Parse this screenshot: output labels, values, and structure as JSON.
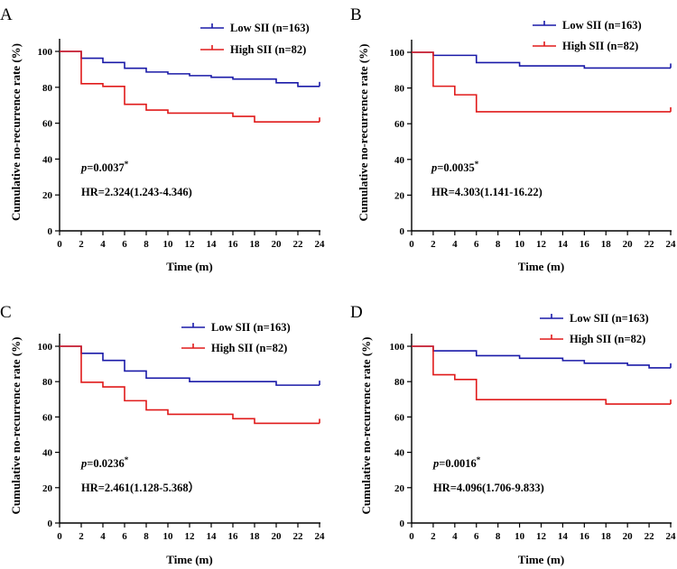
{
  "colors": {
    "low": "#1a1aa8",
    "high": "#e01a1a",
    "axis": "#000000"
  },
  "chart_data": [
    {
      "type": "line",
      "panel_label": "A",
      "xlabel": "Time (m)",
      "ylabel": "Cumulative no-recurrence rate (%)",
      "xlim": [
        0,
        24
      ],
      "ylim": [
        0,
        100
      ],
      "xticks": [
        0,
        2,
        4,
        6,
        8,
        10,
        12,
        14,
        16,
        18,
        20,
        22,
        24
      ],
      "yticks": [
        0,
        20,
        40,
        60,
        80,
        100
      ],
      "series": [
        {
          "name": "Low SII (n=163)",
          "x": [
            0,
            2,
            4,
            6,
            8,
            10,
            12,
            14,
            16,
            20,
            22,
            24
          ],
          "y": [
            100,
            96.2,
            93.8,
            90.6,
            88.5,
            87.5,
            86.5,
            85.6,
            84.6,
            82.5,
            80.5,
            80.5
          ]
        },
        {
          "name": "High SII (n=82)",
          "x": [
            0,
            2,
            4,
            6,
            8,
            10,
            16,
            18,
            24
          ],
          "y": [
            100,
            82,
            80.5,
            70.5,
            67.3,
            65.6,
            63.8,
            60.7,
            60.7
          ]
        }
      ],
      "p_prefix": "p",
      "p_value": "=0.0037",
      "p_star": "*",
      "hr": "HR=2.324(1.243-4.346)"
    },
    {
      "type": "line",
      "panel_label": "B",
      "xlabel": "Time (m)",
      "ylabel": "Cumulative no-recurrence rate (%)",
      "xlim": [
        0,
        24
      ],
      "ylim": [
        0,
        100
      ],
      "xticks": [
        0,
        2,
        4,
        6,
        8,
        10,
        12,
        14,
        16,
        18,
        20,
        22,
        24
      ],
      "yticks": [
        0,
        20,
        40,
        60,
        80,
        100
      ],
      "series": [
        {
          "name": "Low SII (n=163)",
          "x": [
            0,
            2,
            6,
            10,
            16,
            24
          ],
          "y": [
            100,
            98.3,
            94.2,
            92.4,
            91.2,
            91.2
          ]
        },
        {
          "name": "High SII (n=82)",
          "x": [
            0,
            2,
            4,
            6,
            24
          ],
          "y": [
            100,
            81,
            76.2,
            66.7,
            66.7
          ]
        }
      ],
      "p_prefix": "p",
      "p_value": "=0.0035",
      "p_star": "*",
      "hr": "HR=4.303(1.141-16.22)"
    },
    {
      "type": "line",
      "panel_label": "C",
      "xlabel": "Time (m)",
      "ylabel": "Cumulative no-recurrence rate (%)",
      "xlim": [
        0,
        24
      ],
      "ylim": [
        0,
        100
      ],
      "xticks": [
        0,
        2,
        4,
        6,
        8,
        10,
        12,
        14,
        16,
        18,
        20,
        22,
        24
      ],
      "yticks": [
        0,
        20,
        40,
        60,
        80,
        100
      ],
      "series": [
        {
          "name": "Low SII (n=163)",
          "x": [
            0,
            2,
            4,
            6,
            8,
            12,
            20,
            24
          ],
          "y": [
            100,
            96,
            92,
            86,
            82,
            80,
            78,
            78
          ]
        },
        {
          "name": "High SII (n=82)",
          "x": [
            0,
            2,
            4,
            6,
            8,
            10,
            16,
            18,
            24
          ],
          "y": [
            100,
            79.6,
            77,
            69.2,
            64,
            61.5,
            59,
            56.4,
            56.4
          ]
        }
      ],
      "p_prefix": "p",
      "p_value": "=0.0236",
      "p_star": "*",
      "hr": "HR=2.461(1.128-5.368）"
    },
    {
      "type": "line",
      "panel_label": "D",
      "xlabel": "Time (m)",
      "ylabel": "Cumulative no-recurrence rate (%)",
      "xlim": [
        0,
        24
      ],
      "ylim": [
        0,
        100
      ],
      "xticks": [
        0,
        2,
        4,
        6,
        8,
        10,
        12,
        14,
        16,
        18,
        20,
        22,
        24
      ],
      "yticks": [
        0,
        20,
        40,
        60,
        80,
        100
      ],
      "series": [
        {
          "name": "Low SII (n=163)",
          "x": [
            0,
            2,
            6,
            10,
            14,
            16,
            20,
            22,
            24
          ],
          "y": [
            100,
            97.4,
            94.7,
            93.2,
            91.9,
            90.4,
            89.3,
            87.8,
            87.8
          ]
        },
        {
          "name": "High SII (n=82)",
          "x": [
            0,
            2,
            4,
            6,
            18,
            24
          ],
          "y": [
            100,
            83.9,
            81.2,
            69.8,
            67.3,
            67.3
          ]
        }
      ],
      "p_prefix": "p",
      "p_value": "=0.0016",
      "p_star": "*",
      "hr": "HR=4.096(1.706-9.833)"
    }
  ]
}
